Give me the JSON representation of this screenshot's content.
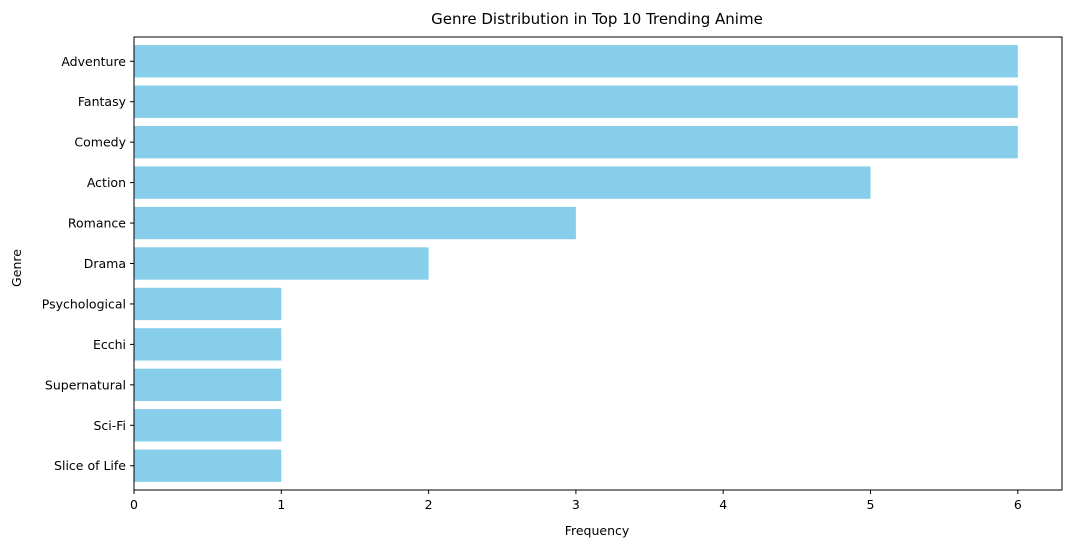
{
  "chart_data": {
    "type": "bar",
    "orientation": "horizontal",
    "title": "Genre Distribution in Top 10 Trending Anime",
    "xlabel": "Frequency",
    "ylabel": "Genre",
    "categories": [
      "Adventure",
      "Fantasy",
      "Comedy",
      "Action",
      "Romance",
      "Drama",
      "Psychological",
      "Ecchi",
      "Supernatural",
      "Sci-Fi",
      "Slice of Life"
    ],
    "values": [
      6,
      6,
      6,
      5,
      3,
      2,
      1,
      1,
      1,
      1,
      1
    ],
    "xlim": [
      0,
      6.3
    ],
    "xticks": [
      0,
      1,
      2,
      3,
      4,
      5,
      6
    ],
    "bar_color": "#87CEEB",
    "grid": false,
    "legend": "none"
  }
}
